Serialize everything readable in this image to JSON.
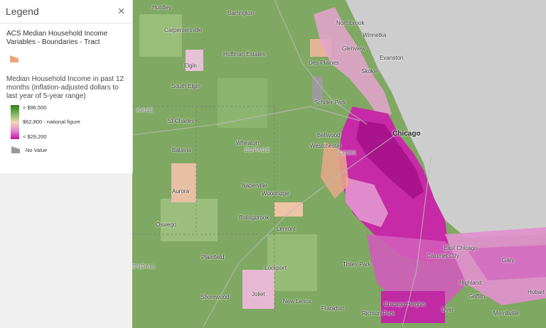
{
  "legend": {
    "title": "Legend",
    "close_icon": "close-icon",
    "layer_name": "ACS Median Household Income Variables - Boundaries - Tract",
    "field_name": "Median Household Income in past 12 months (inflation-adjusted dollars to last year of 5-year range)",
    "ramp_labels": {
      "high": "> $96,500",
      "mid": "$62,800 - national figure",
      "low": "< $29,200"
    },
    "no_value": "No Value",
    "colors": {
      "high": "#2e7d12",
      "mid": "#f2d7b6",
      "low": "#c70fa2",
      "no_value": "#9b9b9b",
      "layer_swatch": "#e8a97c"
    }
  },
  "map": {
    "places": {
      "huntley": "Huntley",
      "barrington": "Barrington",
      "northbrook": "Northbrook",
      "winnetka": "Winnetka",
      "carpentersville": "Carpentersville",
      "glenview": "Glenview",
      "hoffman_estates": "Hoffman Estates",
      "evanston": "Evanston",
      "des_plaines": "Des Plaines",
      "elgin": "Elgin",
      "skokie": "Skokie",
      "south_elgin": "South Elgin",
      "kane": "KANE",
      "schiller_park": "Schiller Park",
      "st_charles": "St Charles",
      "bellwood": "Bellwood",
      "chicago": "Chicago",
      "wheaton": "Wheaton",
      "westchester": "Westchester",
      "batavia": "Batavia",
      "dupage": "DUPAGE",
      "cook": "COOK",
      "naperville": "Naperville",
      "woodridge": "Woodridge",
      "aurora": "Aurora",
      "bolingbrook": "Bolingbrook",
      "oswego": "Oswego",
      "lemont": "Lemont",
      "east_chicago": "East Chicago",
      "plainfield": "Plainfield",
      "calumet_city": "Calumet City",
      "kendall": "ENDALL",
      "lockport": "Lockport",
      "tinley_park": "Tinley Park",
      "gary": "Gary",
      "highland": "Highland",
      "hobart": "Hobart",
      "shorewood": "Shorewood",
      "joliet": "Joliet",
      "new_lenox": "New Lenox",
      "frankfort": "Frankfort",
      "chicago_heights": "Chicago Heights",
      "richton_park": "Richton Park",
      "dyer": "Dyer",
      "griffith": "Griffith",
      "merrillville": "Merrillville"
    }
  }
}
